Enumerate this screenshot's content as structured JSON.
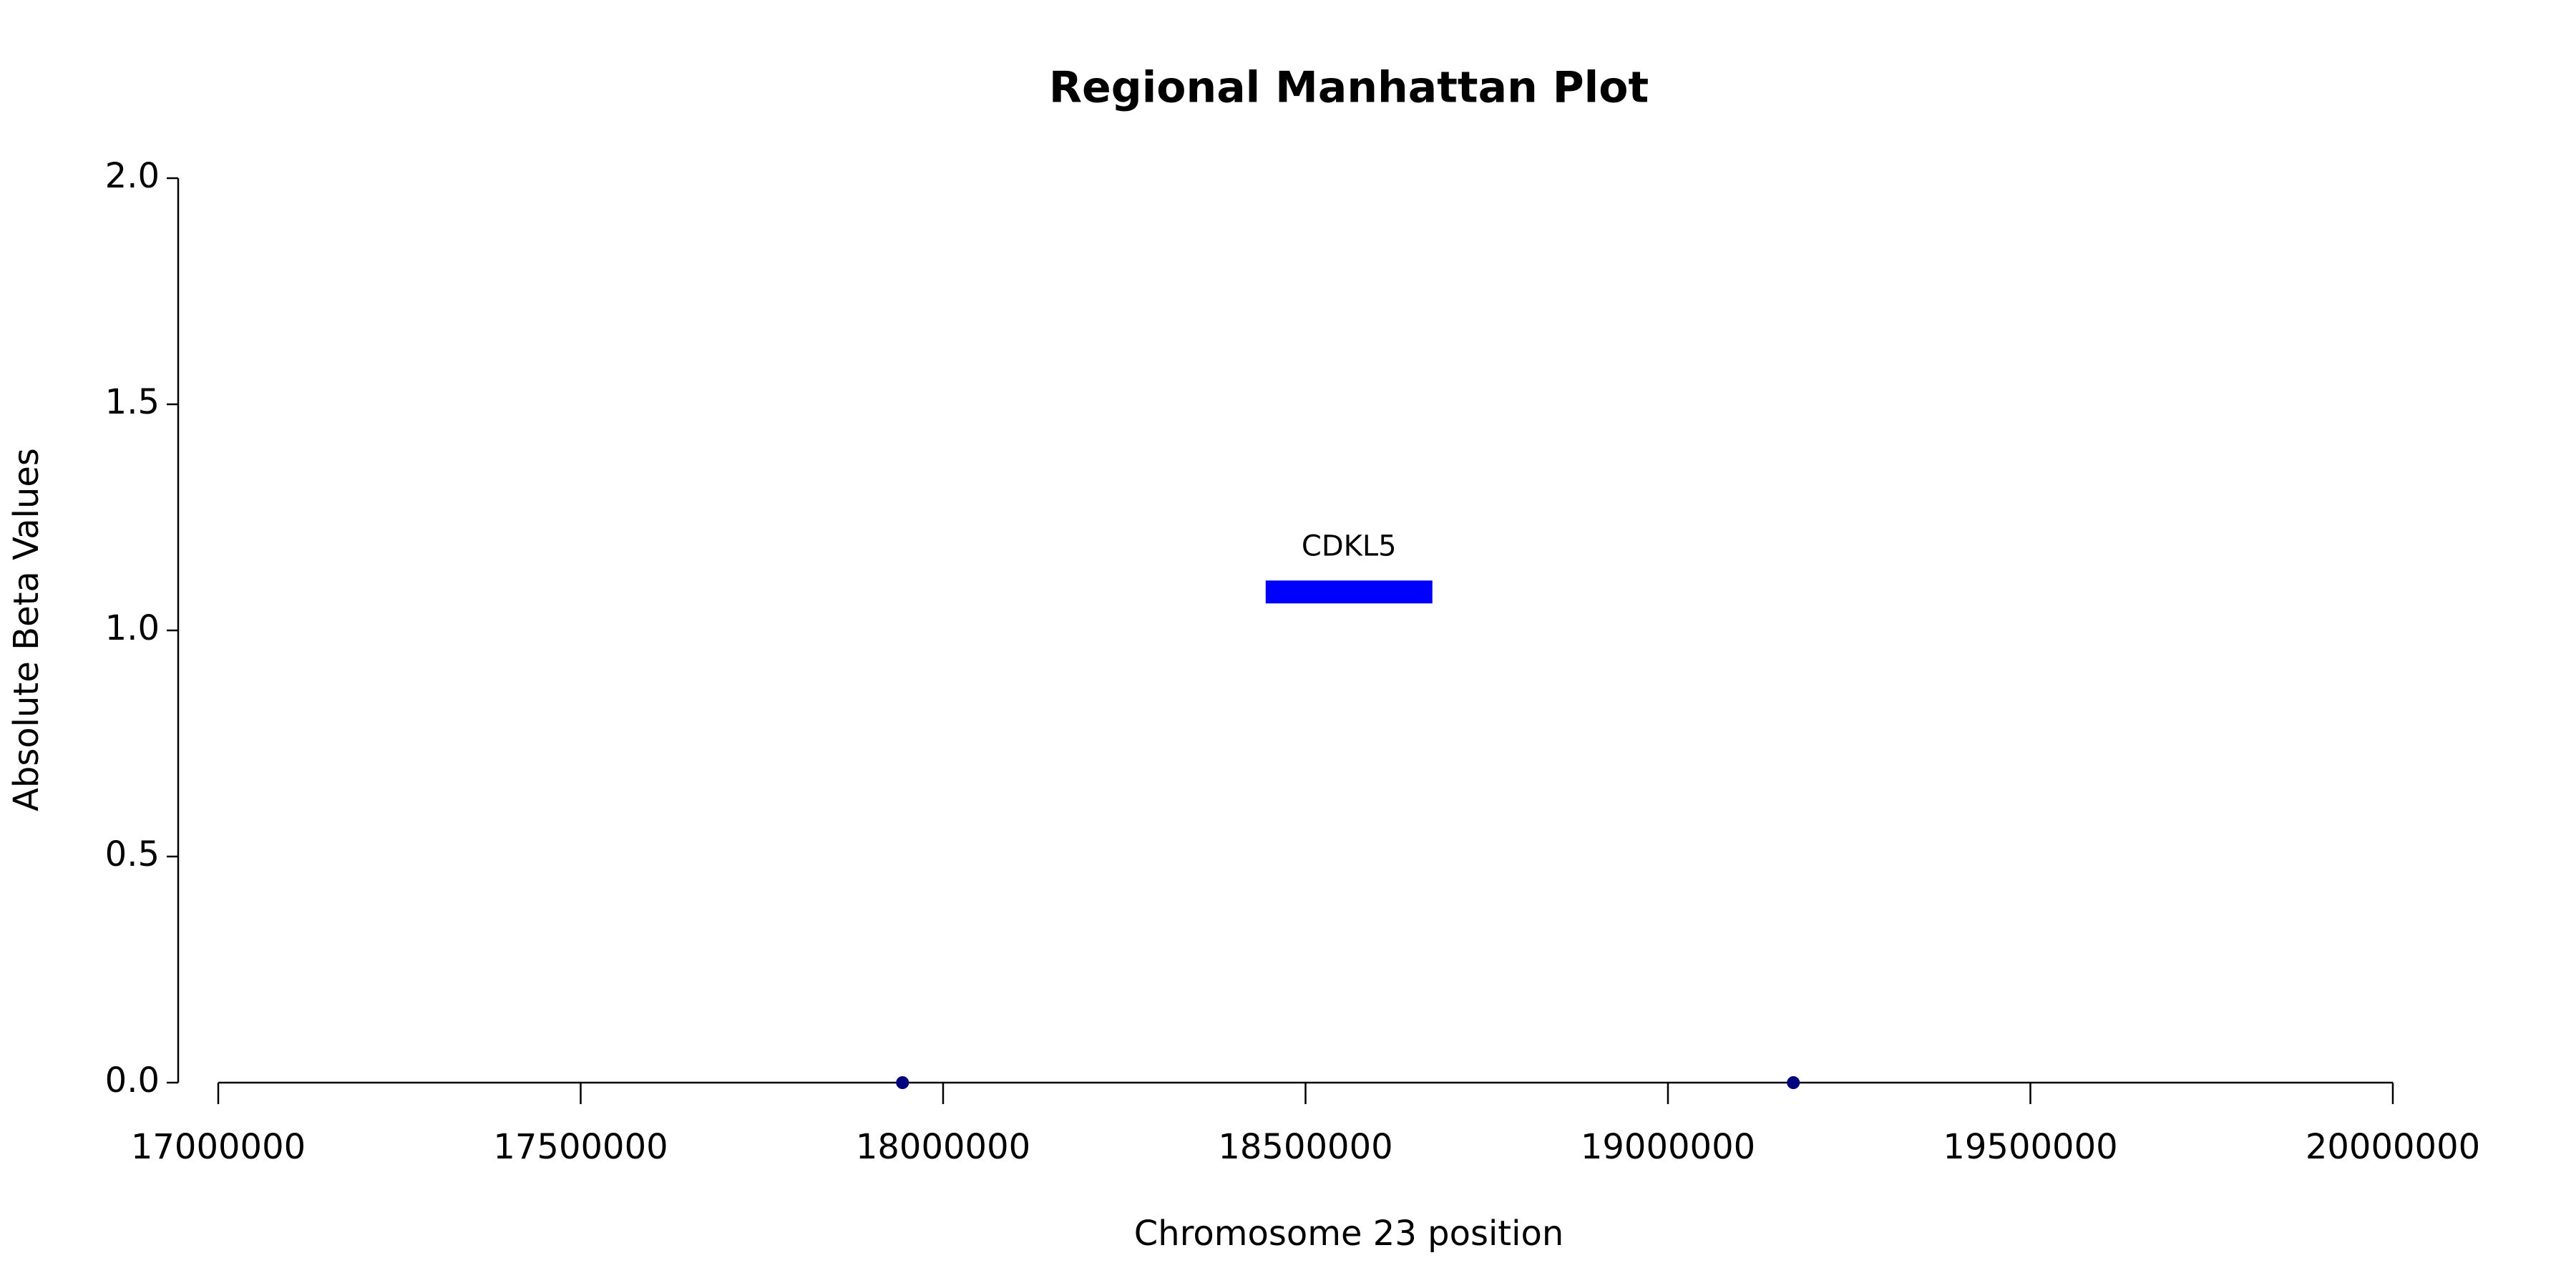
{
  "chart_data": {
    "type": "scatter",
    "title": "Regional Manhattan Plot",
    "x_label": "Chromosome 23 position",
    "y_label": "Absolute Beta Values",
    "x": [
      17944000,
      19173000
    ],
    "values": [
      0,
      0
    ],
    "color": "#00007f",
    "genes": [
      {
        "name": "CDKL5",
        "start": 18445000,
        "end": 18675000,
        "y": 1.085,
        "color": "#0000ff"
      }
    ],
    "xlim": [
      17000000,
      20000000
    ],
    "xticks": [
      17000000,
      17500000,
      18000000,
      18500000,
      19000000,
      19500000,
      20000000
    ],
    "ylim": [
      0,
      2
    ],
    "yticks": [
      {
        "value": 0,
        "label": "0.0"
      },
      {
        "value": 0.5,
        "label": "0.5"
      },
      {
        "value": 1,
        "label": "1.0"
      },
      {
        "value": 1.5,
        "label": "1.5"
      },
      {
        "value": 2,
        "label": "2.0"
      }
    ]
  }
}
